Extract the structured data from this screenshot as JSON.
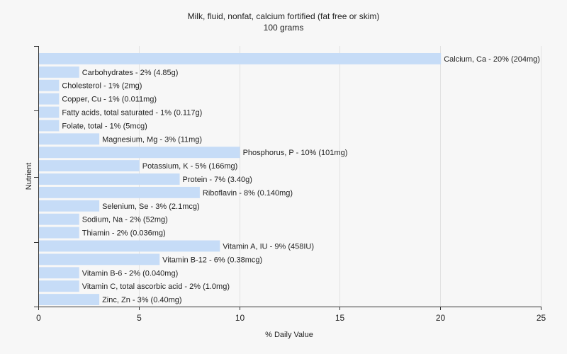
{
  "chart_data": {
    "type": "bar",
    "orientation": "horizontal",
    "title": "Milk, fluid, nonfat, calcium fortified (fat free or skim)",
    "subtitle": "100 grams",
    "xlabel": "% Daily Value",
    "ylabel": "Nutrient",
    "xlim": [
      0,
      25
    ],
    "xticks": [
      0,
      5,
      10,
      15,
      20,
      25
    ],
    "grid": "vertical",
    "bar_color": "#c6dcf7",
    "categories": [
      "Calcium, Ca",
      "Carbohydrates",
      "Cholesterol",
      "Copper, Cu",
      "Fatty acids, total saturated",
      "Folate, total",
      "Magnesium, Mg",
      "Phosphorus, P",
      "Potassium, K",
      "Protein",
      "Riboflavin",
      "Selenium, Se",
      "Sodium, Na",
      "Thiamin",
      "Vitamin A, IU",
      "Vitamin B-12",
      "Vitamin B-6",
      "Vitamin C, total ascorbic acid",
      "Zinc, Zn"
    ],
    "values": [
      20,
      2,
      1,
      1,
      1,
      1,
      3,
      10,
      5,
      7,
      8,
      3,
      2,
      2,
      9,
      6,
      2,
      2,
      3
    ],
    "labels": [
      "Calcium, Ca - 20% (204mg)",
      "Carbohydrates - 2% (4.85g)",
      "Cholesterol - 1% (2mg)",
      "Copper, Cu - 1% (0.011mg)",
      "Fatty acids, total saturated - 1% (0.117g)",
      "Folate, total - 1% (5mcg)",
      "Magnesium, Mg - 3% (11mg)",
      "Phosphorus, P - 10% (101mg)",
      "Potassium, K - 5% (166mg)",
      "Protein - 7% (3.40g)",
      "Riboflavin - 8% (0.140mg)",
      "Selenium, Se - 3% (2.1mcg)",
      "Sodium, Na - 2% (52mg)",
      "Thiamin - 2% (0.036mg)",
      "Vitamin A, IU - 9% (458IU)",
      "Vitamin B-12 - 6% (0.38mcg)",
      "Vitamin B-6 - 2% (0.040mg)",
      "Vitamin C, total ascorbic acid - 2% (1.0mg)",
      "Zinc, Zn - 3% (0.40mg)"
    ]
  }
}
